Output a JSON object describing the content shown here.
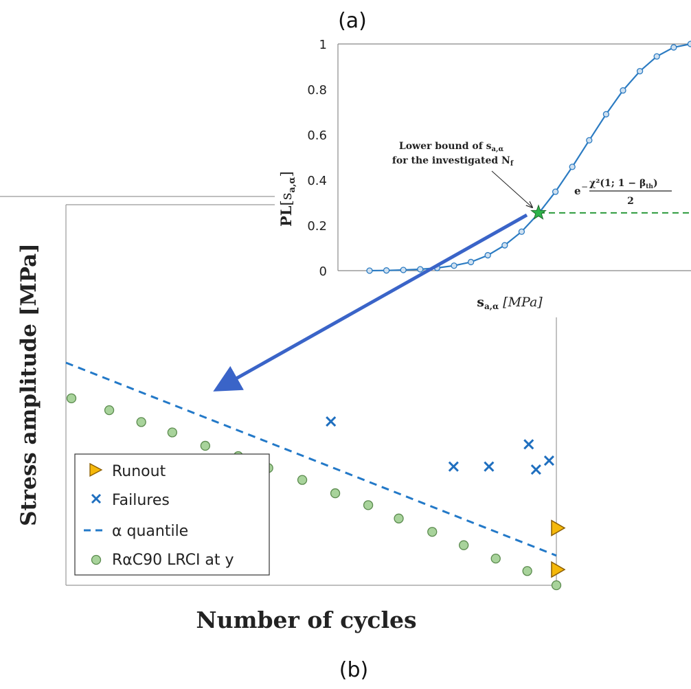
{
  "panel_a": {
    "label": "(a)",
    "y_axis_label_main": "PL",
    "y_axis_label_sub": "[s",
    "y_axis_label_subscript": "a,α",
    "y_axis_label_close": "]",
    "x_axis_label_main": "s",
    "x_axis_label_subscript": "a,α",
    "x_axis_label_unit": "[MPa]",
    "annotation_line1_prefix": "Lower bound of s",
    "annotation_line1_sub": "a,α",
    "annotation_line2_prefix": "for the investigated N",
    "annotation_line2_sub": "f",
    "formula_base": "e",
    "formula_exp_minus": "−",
    "formula_numerator": "χ²(1; 1 − β",
    "formula_numerator_sub": "th",
    "formula_numerator_close": ")",
    "formula_denominator": "2"
  },
  "panel_b": {
    "label": "(b)",
    "x_axis_label": "Number of cycles",
    "y_axis_label": "Stress amplitude [MPa]",
    "legend": {
      "runout": "Runout",
      "failures": "Failures",
      "quantile": "α quantile",
      "lrci": "RαC90 LRCI at y"
    }
  },
  "colors": {
    "curve": "#2b7bc2",
    "arrow": "#3a64c8",
    "star": "#2db34a",
    "dashed_green": "#2a9a3a",
    "dashed_blue": "#2379c8",
    "failure": "#1f6fbf",
    "runout": "#f5b80a",
    "lrci_fill": "#a8d39b",
    "lrci_stroke": "#5a8a4d",
    "axis": "#888888"
  },
  "chart_data": [
    {
      "type": "line",
      "title": "(a)",
      "ylabel": "PL[s_{a,α}]",
      "xlabel": "s_{a,α} [MPa]",
      "ylim": [
        0,
        1
      ],
      "y_ticks": [
        0,
        0.2,
        0.4,
        0.6,
        0.8,
        1
      ],
      "x_ticks": [],
      "grid": false,
      "series": [
        {
          "x": [
            0,
            1,
            2,
            3,
            4,
            5,
            6,
            7,
            8,
            9,
            10,
            11,
            12,
            13,
            14,
            15,
            16,
            17,
            18,
            19
          ],
          "values": [
            0,
            0.001,
            0.003,
            0.006,
            0.012,
            0.022,
            0.038,
            0.068,
            0.112,
            0.172,
            0.252,
            0.348,
            0.458,
            0.575,
            0.69,
            0.795,
            0.88,
            0.945,
            0.985,
            1.0
          ]
        }
      ],
      "threshold_y": 0.255,
      "marked_point_x": 10
    },
    {
      "type": "scatter",
      "title": "(b)",
      "xlabel": "Number of cycles",
      "ylabel": "Stress amplitude [MPa]",
      "x_ticks": [],
      "y_ticks": [],
      "legend_position": "bottom-left",
      "series": [
        {
          "name": "Runout",
          "x": [
            1.0,
            1.0
          ],
          "values": [
            0.193,
            0.053
          ]
        },
        {
          "name": "Failures",
          "x": [
            0.535,
            0.788,
            0.861,
            0.943,
            0.958,
            0.985
          ],
          "values": [
            0.552,
            0.4,
            0.4,
            0.475,
            0.39,
            0.42
          ]
        },
        {
          "name": "α quantile",
          "x": [
            0,
            1.0
          ],
          "values": [
            0.75,
            0.1
          ]
        },
        {
          "name": "RαC90 LRCI at y",
          "x": [
            0.0,
            0.078,
            0.144,
            0.208,
            0.276,
            0.344,
            0.406,
            0.476,
            0.544,
            0.612,
            0.675,
            0.744,
            0.809,
            0.875,
            0.94,
            1.0
          ],
          "values": [
            0.63,
            0.59,
            0.55,
            0.515,
            0.47,
            0.435,
            0.395,
            0.355,
            0.31,
            0.27,
            0.225,
            0.18,
            0.135,
            0.09,
            0.048,
            0.0
          ]
        }
      ]
    }
  ]
}
